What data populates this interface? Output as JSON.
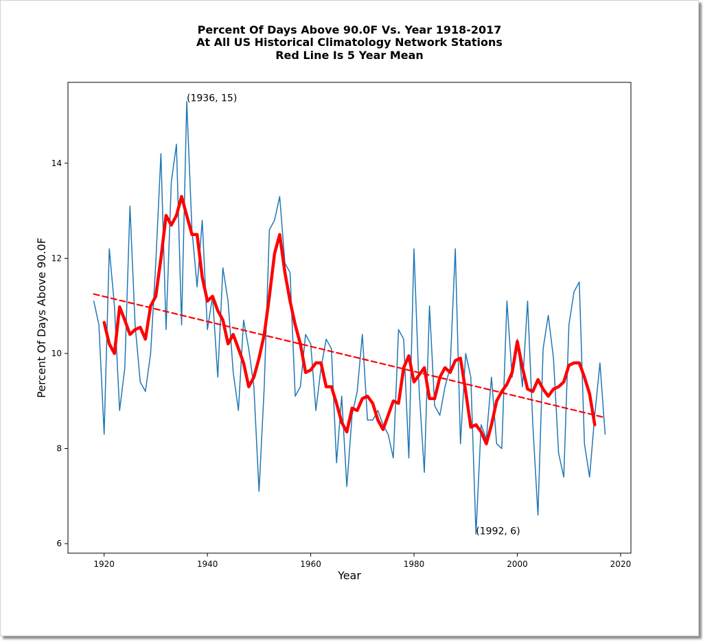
{
  "chart_data": {
    "type": "line",
    "title_lines": [
      "Percent Of Days Above 90.0F Vs. Year 1918-2017",
      "At All US Historical Climatology Network Stations",
      "Red Line Is 5 Year Mean"
    ],
    "xlabel": "Year",
    "ylabel": "Percent Of Days Above 90.0F",
    "xlim": [
      1913,
      2022
    ],
    "ylim": [
      5.8,
      15.7
    ],
    "x_ticks": [
      1920,
      1940,
      1960,
      1980,
      2000,
      2020
    ],
    "y_ticks": [
      6,
      8,
      10,
      12,
      14
    ],
    "grid": false,
    "annotations": [
      {
        "x": 1936,
        "y": 15.3,
        "text": "(1936, 15)"
      },
      {
        "x": 1992,
        "y": 6.2,
        "text": "(1992, 6)"
      }
    ],
    "colors": {
      "annual": "#1f77b4",
      "mean": "#ff0000",
      "trend": "#ff0000"
    },
    "series": [
      {
        "key": "annual",
        "x": [
          1918,
          1919,
          1920,
          1921,
          1922,
          1923,
          1924,
          1925,
          1926,
          1927,
          1928,
          1929,
          1930,
          1931,
          1932,
          1933,
          1934,
          1935,
          1936,
          1937,
          1938,
          1939,
          1940,
          1941,
          1942,
          1943,
          1944,
          1945,
          1946,
          1947,
          1948,
          1949,
          1950,
          1951,
          1952,
          1953,
          1954,
          1955,
          1956,
          1957,
          1958,
          1959,
          1960,
          1961,
          1962,
          1963,
          1964,
          1965,
          1966,
          1967,
          1968,
          1969,
          1970,
          1971,
          1972,
          1973,
          1974,
          1975,
          1976,
          1977,
          1978,
          1979,
          1980,
          1981,
          1982,
          1983,
          1984,
          1985,
          1986,
          1987,
          1988,
          1989,
          1990,
          1991,
          1992,
          1993,
          1994,
          1995,
          1996,
          1997,
          1998,
          1999,
          2000,
          2001,
          2002,
          2003,
          2004,
          2005,
          2006,
          2007,
          2008,
          2009,
          2010,
          2011,
          2012,
          2013,
          2014,
          2015,
          2016,
          2017
        ],
        "y": [
          11.1,
          10.6,
          8.3,
          12.2,
          11.0,
          8.8,
          9.7,
          13.1,
          10.6,
          9.4,
          9.2,
          10.0,
          11.9,
          14.2,
          10.5,
          13.6,
          14.4,
          10.6,
          15.3,
          12.6,
          11.4,
          12.8,
          10.5,
          11.2,
          9.5,
          11.8,
          11.1,
          9.6,
          8.8,
          10.7,
          10.1,
          9.3,
          7.1,
          9.3,
          12.6,
          12.8,
          13.3,
          11.9,
          11.7,
          9.1,
          9.3,
          10.4,
          10.2,
          8.8,
          9.7,
          10.3,
          10.1,
          7.7,
          9.1,
          7.2,
          8.7,
          9.2,
          10.4,
          8.6,
          8.6,
          8.8,
          8.5,
          8.3,
          7.8,
          10.5,
          10.3,
          7.8,
          12.2,
          9.2,
          7.5,
          11.0,
          8.9,
          8.7,
          9.3,
          9.7,
          12.2,
          8.1,
          10.0,
          9.5,
          6.2,
          8.5,
          8.2,
          9.5,
          8.1,
          8.0,
          11.1,
          9.5,
          10.3,
          9.3,
          11.1,
          8.5,
          6.6,
          10.1,
          10.8,
          9.9,
          7.9,
          7.4,
          10.6,
          11.3,
          11.5,
          8.1,
          7.4,
          8.7,
          9.8,
          8.3
        ]
      },
      {
        "key": "mean",
        "x": [
          1920,
          1921,
          1922,
          1923,
          1924,
          1925,
          1926,
          1927,
          1928,
          1929,
          1930,
          1931,
          1932,
          1933,
          1934,
          1935,
          1936,
          1937,
          1938,
          1939,
          1940,
          1941,
          1942,
          1943,
          1944,
          1945,
          1946,
          1947,
          1948,
          1949,
          1950,
          1951,
          1952,
          1953,
          1954,
          1955,
          1956,
          1957,
          1958,
          1959,
          1960,
          1961,
          1962,
          1963,
          1964,
          1965,
          1966,
          1967,
          1968,
          1969,
          1970,
          1971,
          1972,
          1973,
          1974,
          1975,
          1976,
          1977,
          1978,
          1979,
          1980,
          1981,
          1982,
          1983,
          1984,
          1985,
          1986,
          1987,
          1988,
          1989,
          1990,
          1991,
          1992,
          1993,
          1994,
          1995,
          1996,
          1997,
          1998,
          1999,
          2000,
          2001,
          2002,
          2003,
          2004,
          2005,
          2006,
          2007,
          2008,
          2009,
          2010,
          2011,
          2012,
          2013,
          2014,
          2015
        ],
        "y": [
          10.65,
          10.2,
          10.0,
          10.98,
          10.7,
          10.4,
          10.5,
          10.55,
          10.3,
          11.0,
          11.2,
          12.0,
          12.9,
          12.7,
          12.9,
          13.3,
          12.9,
          12.5,
          12.5,
          11.6,
          11.1,
          11.2,
          10.9,
          10.7,
          10.2,
          10.4,
          10.1,
          9.8,
          9.3,
          9.5,
          9.9,
          10.4,
          11.2,
          12.1,
          12.5,
          11.7,
          11.1,
          10.6,
          10.2,
          9.6,
          9.65,
          9.8,
          9.8,
          9.3,
          9.3,
          8.95,
          8.55,
          8.35,
          8.85,
          8.8,
          9.05,
          9.1,
          8.95,
          8.6,
          8.4,
          8.7,
          9.0,
          8.95,
          9.7,
          9.95,
          9.4,
          9.55,
          9.7,
          9.05,
          9.05,
          9.5,
          9.7,
          9.6,
          9.85,
          9.9,
          9.2,
          8.45,
          8.5,
          8.35,
          8.1,
          8.5,
          9.0,
          9.2,
          9.35,
          9.6,
          10.25,
          9.7,
          9.25,
          9.2,
          9.45,
          9.25,
          9.1,
          9.25,
          9.3,
          9.4,
          9.75,
          9.8,
          9.8,
          9.5,
          9.15,
          8.5
        ]
      },
      {
        "key": "trend",
        "x": [
          1918,
          2017
        ],
        "y": [
          11.25,
          8.65
        ]
      }
    ]
  }
}
